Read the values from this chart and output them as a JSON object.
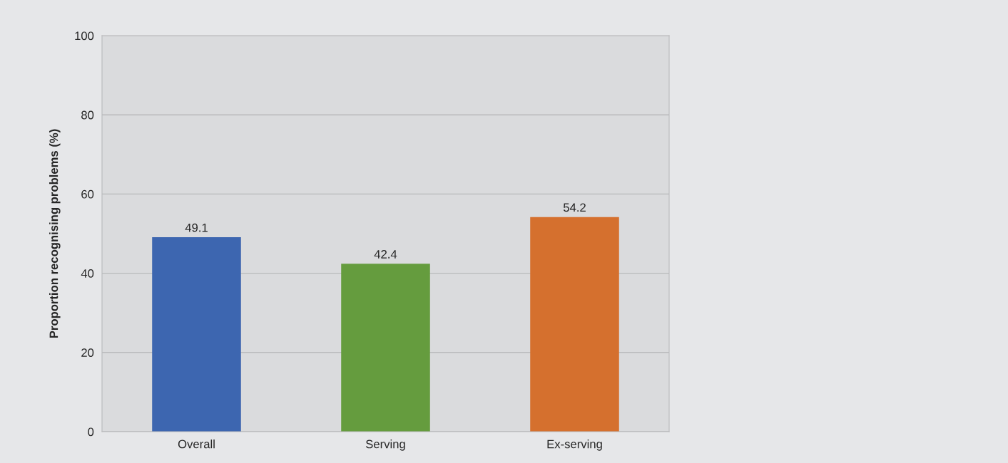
{
  "chart_data": {
    "type": "bar",
    "ylabel": "Proportion recognising problems (%)",
    "categories": [
      "Overall",
      "Serving",
      "Ex-serving"
    ],
    "values": [
      49.1,
      42.4,
      54.2
    ],
    "colors": [
      "#3d66b0",
      "#659c3e",
      "#d5702e"
    ],
    "ylim": [
      0,
      100
    ],
    "yticks": [
      0,
      20,
      40,
      60,
      80,
      100
    ],
    "grid": "y",
    "data_labels": true
  }
}
